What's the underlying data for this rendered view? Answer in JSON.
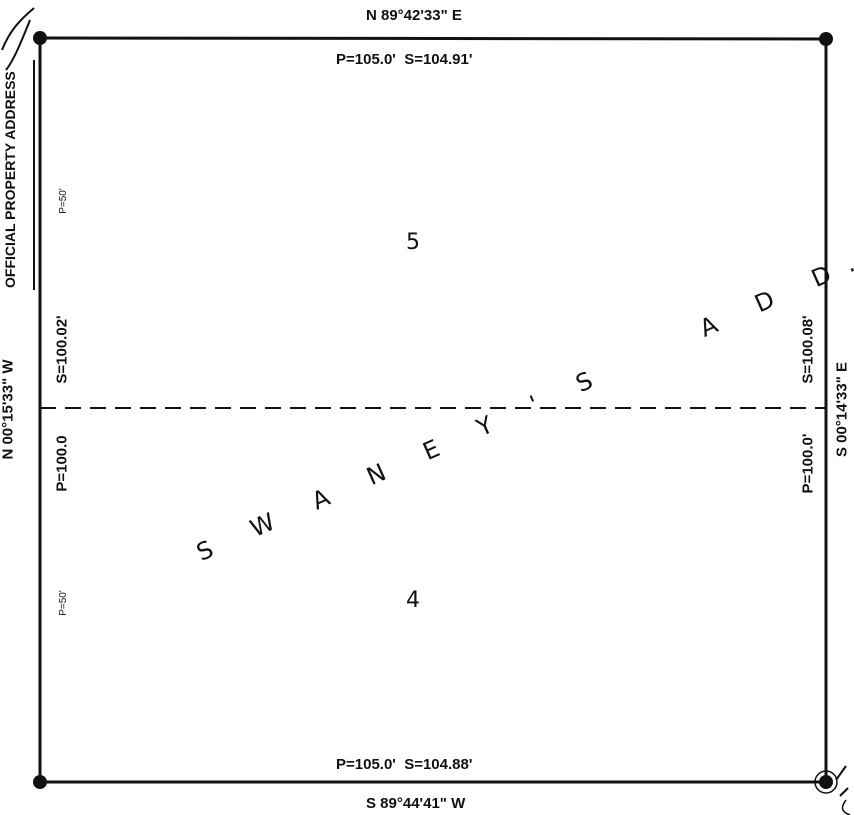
{
  "plat": {
    "north_bearing": "N 89°42'33\" E",
    "north_distance": "P=105.0'  S=104.91'",
    "south_bearing": "S 89°44'41\" W",
    "south_distance": "P=105.0'  S=104.88'",
    "west_bearing": "N 00°15'33\" W",
    "west_upper_distance": "S=100.02'",
    "west_lower_distance": "P=100.0",
    "west_upper_plat": "P=50'",
    "west_lower_plat": "P=50'",
    "east_bearing": "S 00°14'33\" E",
    "east_upper_distance": "S=100.08'",
    "east_lower_distance": "P=100.0'",
    "lot_upper": "5",
    "lot_lower": "4",
    "subdivision_name": "S W A N E Y ' S    A D D."
  },
  "stamp": {
    "text": "OFFICIAL PROPERTY ADDRESS"
  },
  "colors": {
    "line": "#111111",
    "background": "#ffffff"
  }
}
